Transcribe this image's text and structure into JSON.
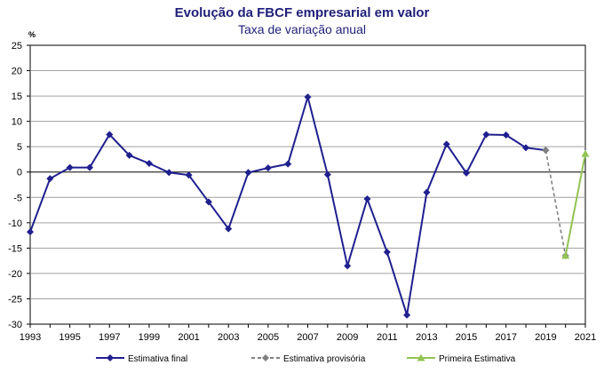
{
  "chart_data": {
    "type": "line",
    "title": "Evolução da FBCF empresarial em valor",
    "subtitle": "Taxa de variação anual",
    "ylabel": "%",
    "xlabel": "",
    "ylim": [
      -30,
      25
    ],
    "yticks": [
      25,
      20,
      15,
      10,
      5,
      0,
      -5,
      -10,
      -15,
      -20,
      -25,
      -30
    ],
    "xlim": [
      1993,
      2021
    ],
    "xticks": [
      1993,
      1995,
      1997,
      1999,
      2001,
      2003,
      2005,
      2007,
      2009,
      2011,
      2013,
      2015,
      2017,
      2019,
      2021
    ],
    "grid": true,
    "legend_position": "bottom",
    "series": [
      {
        "name": "Estimativa final",
        "color": "#1f1f8f",
        "line_style": "solid",
        "marker": "diamond",
        "x": [
          1993,
          1994,
          1995,
          1996,
          1997,
          1998,
          1999,
          2000,
          2001,
          2002,
          2003,
          2004,
          2005,
          2006,
          2007,
          2008,
          2009,
          2010,
          2011,
          2012,
          2013,
          2014,
          2015,
          2016,
          2017,
          2018,
          2019
        ],
        "y": [
          -11.8,
          -1.3,
          0.9,
          0.9,
          7.4,
          3.3,
          1.7,
          -0.1,
          -0.6,
          -5.9,
          -11.2,
          -0.1,
          0.8,
          1.6,
          14.8,
          -0.5,
          -18.5,
          -5.3,
          -15.8,
          -28.2,
          -4.0,
          5.5,
          -0.2,
          7.4,
          7.3,
          4.8,
          4.3
        ]
      },
      {
        "name": "Estimativa provisória",
        "color": "#808080",
        "line_style": "dashed",
        "marker": "diamond",
        "x": [
          2019,
          2020
        ],
        "y": [
          4.3,
          -16.5
        ]
      },
      {
        "name": "Primeira Estimativa",
        "color": "#92c353",
        "line_style": "solid",
        "marker": "triangle",
        "x": [
          2020,
          2021
        ],
        "y": [
          -16.5,
          3.6
        ]
      }
    ]
  }
}
